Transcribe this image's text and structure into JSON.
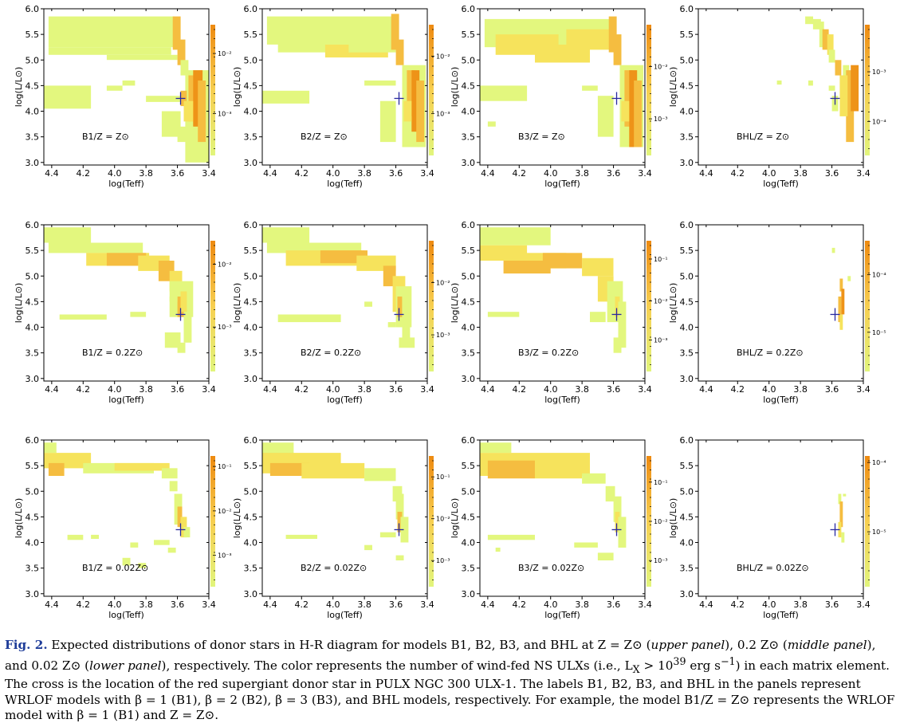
{
  "figure": {
    "ylabel": "log(L/L⊙)",
    "xlabel": "log(Teff)",
    "x_ticks": [
      4.4,
      4.2,
      4.0,
      3.8,
      3.6,
      3.4
    ],
    "x_tick_labels": [
      "4.4",
      "4.2",
      "4.0",
      "3.8",
      "3.6",
      "3.4"
    ],
    "y_ticks": [
      3.0,
      3.5,
      4.0,
      4.5,
      5.0,
      5.5,
      6.0
    ],
    "y_tick_labels": [
      "3.0",
      "3.5",
      "4.0",
      "4.5",
      "5.0",
      "5.5",
      "6.0"
    ],
    "xlim": [
      4.45,
      3.4
    ],
    "ylim": [
      2.95,
      6.0
    ],
    "cross": {
      "logT": 3.58,
      "logL": 4.25,
      "color": "#2a2aa0"
    },
    "colors": {
      "low": "#e2f57c",
      "mid": "#f7cf50",
      "high": "#ee8a10",
      "axes": "#000000"
    }
  },
  "chart_data": [
    {
      "type": "heatmap",
      "label": "B1/Z = Z⊙",
      "cbar_labels": [
        "10⁻²",
        "10⁻³"
      ],
      "cbar_pos": [
        0.22,
        0.68
      ]
    },
    {
      "type": "heatmap",
      "label": "B2/Z = Z⊙",
      "cbar_labels": [
        "10⁻²",
        "10⁻³"
      ],
      "cbar_pos": [
        0.24,
        0.68
      ]
    },
    {
      "type": "heatmap",
      "label": "B3/Z = Z⊙",
      "cbar_labels": [
        "10⁻²",
        "10⁻³"
      ],
      "cbar_pos": [
        0.32,
        0.72
      ]
    },
    {
      "type": "heatmap",
      "label": "BHL/Z = Z⊙",
      "cbar_labels": [
        "10⁻³",
        "10⁻⁴"
      ],
      "cbar_pos": [
        0.36,
        0.74
      ]
    },
    {
      "type": "heatmap",
      "label": "B1/Z = 0.2Z⊙",
      "cbar_labels": [
        "10⁻²",
        "10⁻³"
      ],
      "cbar_pos": [
        0.18,
        0.66
      ]
    },
    {
      "type": "heatmap",
      "label": "B2/Z = 0.2Z⊙",
      "cbar_labels": [
        "10⁻²",
        "10⁻³"
      ],
      "cbar_pos": [
        0.32,
        0.72
      ]
    },
    {
      "type": "heatmap",
      "label": "B3/Z = 0.2Z⊙",
      "cbar_labels": [
        "10⁻¹",
        "10⁻²",
        "10⁻³"
      ],
      "cbar_pos": [
        0.14,
        0.46,
        0.76
      ]
    },
    {
      "type": "heatmap",
      "label": "BHL/Z = 0.2Z⊙",
      "cbar_labels": [
        "10⁻⁴",
        "10⁻⁵"
      ],
      "cbar_pos": [
        0.26,
        0.7
      ]
    },
    {
      "type": "heatmap",
      "label": "B1/Z = 0.02Z⊙",
      "cbar_labels": [
        "10⁻¹",
        "10⁻²",
        "10⁻³"
      ],
      "cbar_pos": [
        0.08,
        0.42,
        0.76
      ]
    },
    {
      "type": "heatmap",
      "label": "B2/Z = 0.02Z⊙",
      "cbar_labels": [
        "10⁻¹",
        "10⁻²",
        "10⁻³"
      ],
      "cbar_pos": [
        0.16,
        0.48,
        0.8
      ]
    },
    {
      "type": "heatmap",
      "label": "B3/Z = 0.02Z⊙",
      "cbar_labels": [
        "10⁻¹",
        "10⁻²",
        "10⁻³"
      ],
      "cbar_pos": [
        0.2,
        0.5,
        0.8
      ]
    },
    {
      "type": "heatmap",
      "label": "BHL/Z = 0.02Z⊙",
      "cbar_labels": [
        "10⁻⁴",
        "10⁻⁵"
      ],
      "cbar_pos": [
        0.05,
        0.58
      ]
    }
  ],
  "caption": {
    "fig_label": "Fig. 2.",
    "text_1": " Expected distributions of donor stars in H-R diagram for models B1, B2, B3, and BHL at Z = Z⊙ (",
    "upper": "upper panel",
    "text_2": "), 0.2 Z⊙ (",
    "middle": "middle panel",
    "text_3": "), and 0.02 Z⊙ (",
    "lower": "lower panel",
    "text_4": "), respectively. The color represents the number of wind-fed NS ULXs (i.e., L",
    "text_4_sub": "X",
    "text_5": " > 10",
    "text_5_sup": "39",
    "text_6": " erg s",
    "text_6_sup": "−1",
    "text_7": ") in each matrix element. The cross is the location of the red supergiant donor star in PULX NGC 300 ULX-1. The labels B1, B2, B3, and BHL in the panels represent WRLOF models with β = 1 (B1), β = 2 (B2), β = 3 (B3), and BHL models, respectively. For example, the model B1/Z = Z⊙ represents the WRLOF model with β = 1 (B1) and Z = Z⊙."
  }
}
